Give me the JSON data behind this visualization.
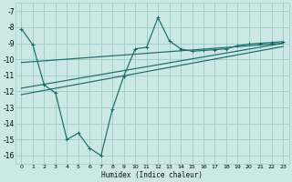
{
  "background_color": "#cce8e4",
  "grid_color": "#99cccc",
  "line_color": "#1a6b6b",
  "xlabel": "Humidex (Indice chaleur)",
  "ylim": [
    -16.5,
    -6.5
  ],
  "xlim": [
    -0.5,
    23.5
  ],
  "yticks": [
    -16,
    -15,
    -14,
    -13,
    -12,
    -11,
    -10,
    -9,
    -8,
    -7
  ],
  "xticks": [
    0,
    1,
    2,
    3,
    4,
    5,
    6,
    7,
    8,
    9,
    10,
    11,
    12,
    13,
    14,
    15,
    16,
    17,
    18,
    19,
    20,
    21,
    22,
    23
  ],
  "series_zigzag": {
    "x": [
      0,
      1,
      2,
      3,
      4,
      5,
      6,
      7,
      8,
      9,
      10,
      11,
      12,
      13,
      14,
      15,
      16,
      17,
      18,
      19,
      20,
      21,
      22,
      23
    ],
    "y": [
      -8.1,
      -9.1,
      -11.6,
      -12.1,
      -15.0,
      -14.6,
      -15.55,
      -16.0,
      -13.1,
      -11.05,
      -9.35,
      -9.25,
      -7.4,
      -8.85,
      -9.35,
      -9.5,
      -9.45,
      -9.4,
      -9.35,
      -9.15,
      -9.05,
      -9.0,
      -8.95,
      -8.9
    ],
    "marker": "+"
  },
  "series_line1": {
    "x": [
      0,
      23
    ],
    "y": [
      -11.8,
      -9.0
    ]
  },
  "series_line2": {
    "x": [
      0,
      23
    ],
    "y": [
      -12.2,
      -9.2
    ]
  },
  "series_line3": {
    "x": [
      0,
      23
    ],
    "y": [
      -10.2,
      -9.0
    ]
  }
}
